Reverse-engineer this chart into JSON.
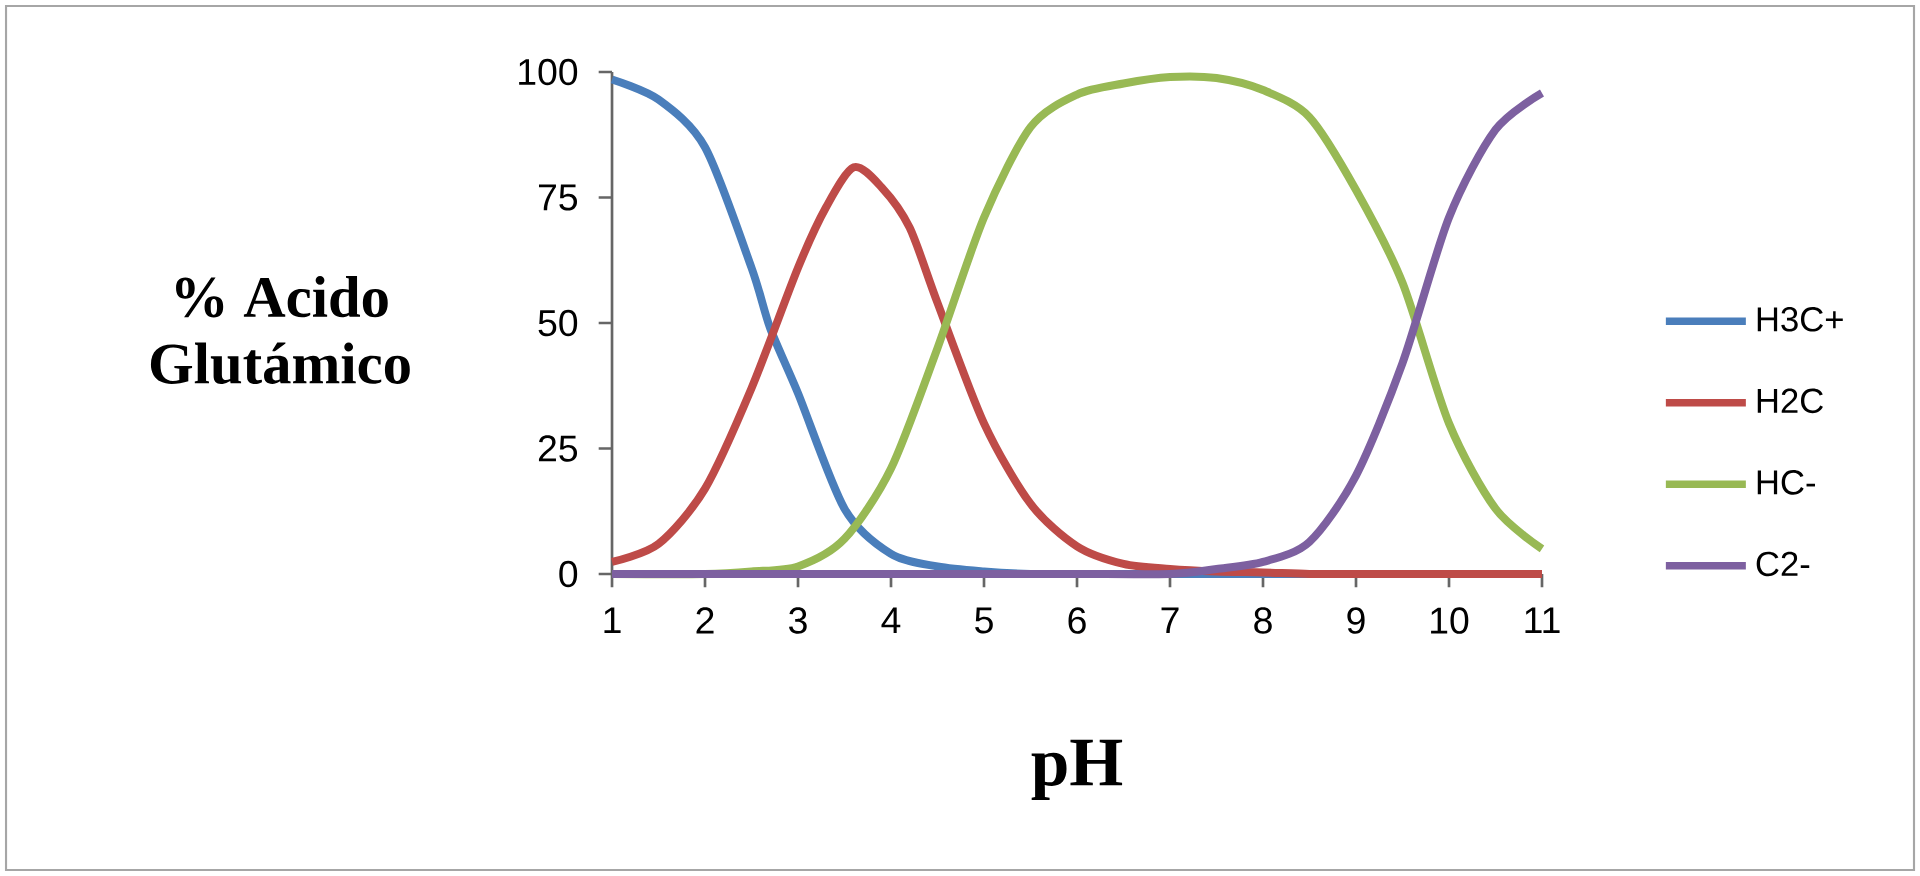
{
  "chart_data": {
    "type": "line",
    "xlabel": "pH",
    "ylabel": "% Acido Glutámico",
    "xlim": [
      1,
      11
    ],
    "xticks": [
      1,
      2,
      3,
      4,
      5,
      6,
      7,
      8,
      9,
      10,
      11
    ],
    "ylim": [
      0,
      100
    ],
    "yticks": [
      0,
      25,
      50,
      75,
      100
    ],
    "legend": "right",
    "marker": "none",
    "line_style": "solid",
    "series": [
      {
        "name": "H3C+",
        "color": "#4a7ebb",
        "x": [
          1,
          1.5,
          2,
          2.5,
          2.7,
          3,
          3.5,
          4,
          4.5,
          5,
          5.5,
          6,
          7,
          8,
          9
        ],
        "values": [
          98.5,
          94.5,
          85,
          61,
          49,
          36,
          13,
          4,
          1.5,
          0.5,
          0,
          0,
          0,
          0,
          0
        ]
      },
      {
        "name": "H2C",
        "color": "#be4b48",
        "x": [
          1,
          1.5,
          2,
          2.5,
          3,
          3.3,
          3.6,
          3.9,
          4.2,
          4.5,
          5,
          5.5,
          6,
          6.5,
          7,
          7.5,
          8,
          8.5,
          9,
          10,
          11
        ],
        "values": [
          2.4,
          6,
          17,
          37,
          61,
          73,
          81,
          77,
          69,
          54,
          30,
          14,
          5.5,
          2,
          1,
          0.5,
          0.3,
          0,
          0,
          0,
          0
        ]
      },
      {
        "name": "HC-",
        "color": "#98b954",
        "x": [
          1,
          2,
          2.5,
          3,
          3.5,
          4,
          4.5,
          5,
          5.5,
          6,
          6.5,
          7,
          7.5,
          8,
          8.5,
          9,
          9.5,
          10,
          10.5,
          11
        ],
        "values": [
          0,
          0,
          0.5,
          1.5,
          7,
          21,
          45,
          71,
          89,
          95.5,
          97.7,
          99,
          98.8,
          96.4,
          91,
          76.5,
          58,
          30,
          13,
          5
        ]
      },
      {
        "name": "C2-",
        "color": "#7d60a0",
        "x": [
          1,
          2,
          3,
          4,
          5,
          6,
          7,
          7.5,
          8,
          8.5,
          9,
          9.5,
          10,
          10.5,
          11
        ],
        "values": [
          0,
          0,
          0,
          0,
          0,
          0,
          0,
          1,
          2.4,
          6.4,
          19.6,
          42,
          71,
          88.5,
          95.8
        ]
      }
    ]
  }
}
